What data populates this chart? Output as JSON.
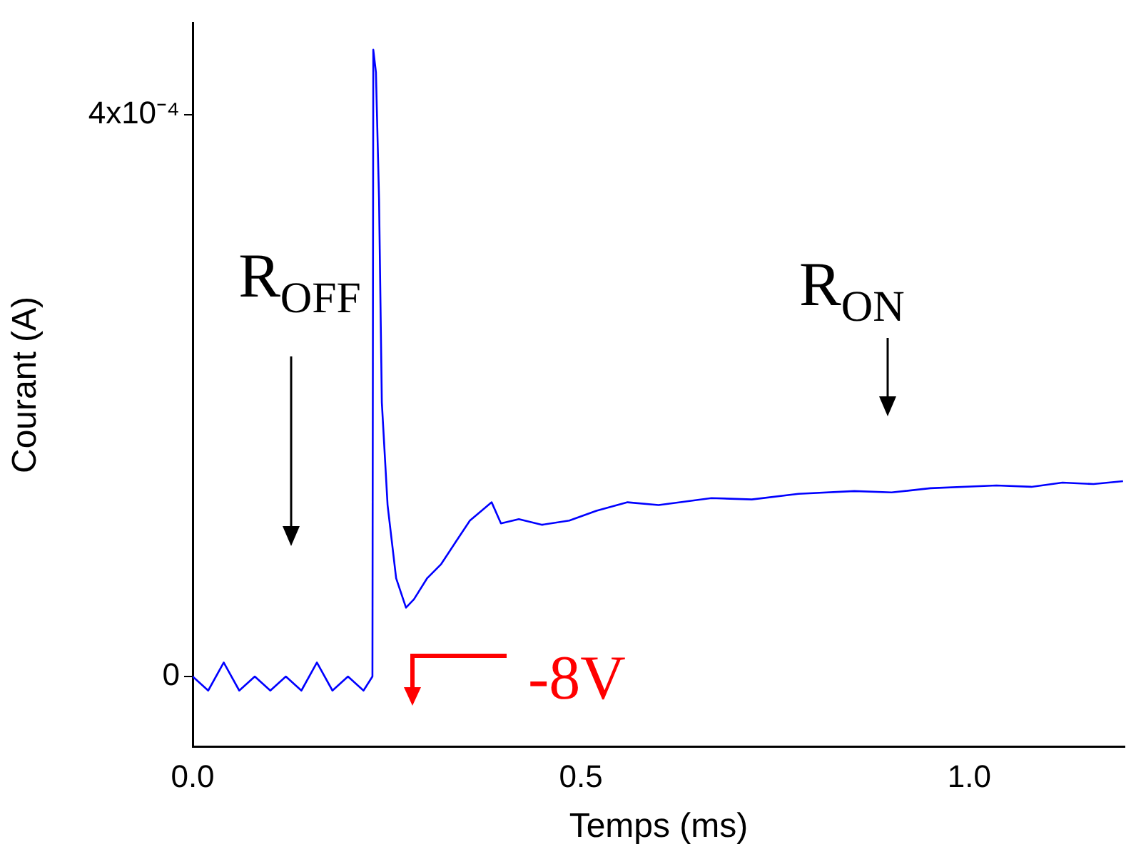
{
  "chart_data": {
    "type": "line",
    "xlabel": "Temps (ms)",
    "ylabel": "Courant (A)",
    "xlim": [
      0,
      1.2
    ],
    "ylim": [
      -5e-05,
      0.000465
    ],
    "xticks": [
      {
        "value": 0,
        "label": "0.0"
      },
      {
        "value": 0.5,
        "label": "0.5"
      },
      {
        "value": 1,
        "label": "1.0"
      }
    ],
    "yticks": [
      0,
      {
        "value": 0.0004,
        "label": "4x10⁻⁴"
      }
    ],
    "grid": false,
    "legend": false,
    "marker": "none",
    "line_style": "solid",
    "series": [
      {
        "color": "#0000ff",
        "x": [
          0,
          0.02,
          0.04,
          0.06,
          0.08,
          0.1,
          0.12,
          0.14,
          0.16,
          0.18,
          0.2,
          0.22,
          0.2315,
          0.2326,
          0.236,
          0.24,
          0.2436,
          0.251,
          0.262,
          0.2747,
          0.285,
          0.302,
          0.32,
          0.339,
          0.357,
          0.372,
          0.385,
          0.397,
          0.42,
          0.45,
          0.485,
          0.52,
          0.56,
          0.6,
          0.668,
          0.72,
          0.78,
          0.852,
          0.9,
          0.95,
          1.035,
          1.08,
          1.12,
          1.16,
          1.198
        ],
        "values": [
          0.0,
          -1e-05,
          1e-05,
          -1e-05,
          0.0,
          -1e-05,
          0.0,
          -1e-05,
          1e-05,
          -1e-05,
          0.0,
          -1e-05,
          0.0,
          0.000446,
          0.00043,
          0.00034,
          0.000195,
          0.000122,
          7e-05,
          4.9e-05,
          5.5e-05,
          7e-05,
          8e-05,
          9.6e-05,
          0.000111,
          0.000118,
          0.000124,
          0.000109,
          0.000112,
          0.000108,
          0.000111,
          0.000118,
          0.000124,
          0.000122,
          0.000127,
          0.000126,
          0.00013,
          0.000132,
          0.000131,
          0.000134,
          0.000136,
          0.000135,
          0.000138,
          0.000137,
          0.000139
        ]
      }
    ],
    "annotations": [
      "R$_{OFF}$",
      "R$_{ON}$",
      "-8V"
    ]
  }
}
